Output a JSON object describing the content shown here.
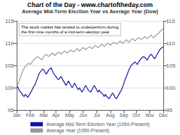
{
  "chart_data": {
    "type": "line",
    "title": "Chart of the Day - www.chartoftheday.com",
    "subtitle": "Average Mid-Term Election Year vs Average Year (Dow)",
    "annotation": "The stock market has tended to underperform during\nthe first nine months of a mid-term election year.",
    "categories": [
      "Jan",
      null,
      null,
      null,
      null,
      null,
      null,
      null,
      null,
      null,
      null,
      "Feb",
      null,
      null,
      null,
      null,
      null,
      null,
      null,
      null,
      null,
      null,
      "Mar",
      null,
      null,
      null,
      null,
      null,
      null,
      null,
      null,
      null,
      "Apr",
      null,
      null,
      null,
      null,
      null,
      null,
      null,
      null,
      null,
      null,
      "May",
      null,
      null,
      null,
      null,
      null,
      null,
      null,
      null,
      null,
      null,
      "Jun",
      null,
      null,
      null,
      null,
      null,
      null,
      null,
      null,
      null,
      null,
      "Jul",
      null,
      null,
      null,
      null,
      null,
      null,
      null,
      null,
      null,
      null,
      "Aug",
      null,
      null,
      null,
      null,
      null,
      null,
      null,
      null,
      null,
      null,
      "Sep",
      null,
      null,
      null,
      null,
      null,
      null,
      null,
      null,
      null,
      "Oct",
      null,
      null,
      null,
      null,
      null,
      null,
      null,
      null,
      null,
      null,
      "Nov",
      null,
      null,
      null,
      null,
      null,
      null,
      null,
      null,
      null,
      null,
      "Dec"
    ],
    "series": [
      {
        "name": "Average Mid-Term Election Year (1950-Present)",
        "color": "#1010aa",
        "values": [
          100.3,
          100.1,
          99.5,
          99.0,
          98.8,
          98.3,
          98.0,
          98.5,
          98.2,
          97.8,
          98.3,
          98.8,
          99.2,
          99.8,
          100.3,
          100.8,
          101.5,
          102.2,
          103.0,
          103.5,
          103.8,
          104.2,
          104.0,
          103.5,
          103.0,
          103.5,
          104.0,
          104.2,
          104.5,
          103.8,
          103.2,
          102.8,
          102.5,
          102.0,
          101.8,
          102.2,
          102.5,
          102.0,
          101.5,
          101.0,
          100.5,
          101.0,
          101.5,
          101.0,
          100.5,
          100.0,
          100.5,
          101.0,
          100.5,
          100.0,
          99.5,
          100.0,
          99.5,
          99.0,
          99.5,
          100.0,
          100.5,
          100.0,
          99.5,
          99.2,
          99.0,
          99.5,
          100.0,
          100.5,
          100.0,
          99.5,
          99.0,
          99.5,
          99.0,
          98.8,
          98.5,
          98.0,
          98.5,
          98.0,
          97.8,
          97.5,
          98.0,
          98.5,
          98.8,
          98.3,
          97.8,
          97.5,
          98.0,
          98.5,
          99.0,
          99.5,
          100.2,
          101.0,
          101.8,
          102.5,
          103.2,
          104.0,
          104.5,
          105.0,
          105.3,
          105.5,
          105.8,
          105.5,
          105.2,
          105.8,
          106.2,
          106.5,
          106.8,
          107.0,
          106.8,
          106.5,
          106.2,
          106.8,
          107.2,
          107.5,
          107.2,
          106.8,
          106.5,
          107.0,
          107.5,
          108.0,
          108.5,
          108.8,
          109.0,
          109.2
        ]
      },
      {
        "name": "Average Year (1950-Present)",
        "color": "#999999",
        "values": [
          100.2,
          100.8,
          101.5,
          102.2,
          103.0,
          103.8,
          104.3,
          104.8,
          105.0,
          105.3,
          105.5,
          105.2,
          105.5,
          106.0,
          106.3,
          106.5,
          106.8,
          107.0,
          106.8,
          106.5,
          106.3,
          106.5,
          107.0,
          107.3,
          107.5,
          107.2,
          107.0,
          107.3,
          107.5,
          107.8,
          107.5,
          107.2,
          107.5,
          107.8,
          108.0,
          107.8,
          107.5,
          107.8,
          108.0,
          108.2,
          108.0,
          107.8,
          108.0,
          108.2,
          108.5,
          108.2,
          108.0,
          108.2,
          108.5,
          108.8,
          108.5,
          108.2,
          108.5,
          108.8,
          109.0,
          108.8,
          108.5,
          108.8,
          109.0,
          109.2,
          109.0,
          108.8,
          109.0,
          109.2,
          109.5,
          109.2,
          109.0,
          109.2,
          109.5,
          109.8,
          109.5,
          109.2,
          109.5,
          109.8,
          110.0,
          109.8,
          109.5,
          109.8,
          110.0,
          110.2,
          110.0,
          109.8,
          110.0,
          110.2,
          110.5,
          110.2,
          110.0,
          110.2,
          110.5,
          110.8,
          110.5,
          110.2,
          110.5,
          110.8,
          111.0,
          110.8,
          110.5,
          110.8,
          111.0,
          111.2,
          111.0,
          110.8,
          111.0,
          111.2,
          111.5,
          111.2,
          111.0,
          111.3,
          111.5,
          111.8,
          111.5,
          111.2,
          111.5,
          111.8,
          112.0,
          112.2,
          112.5,
          112.8,
          113.0,
          113.2
        ]
      }
    ],
    "ylim": [
      95,
      115
    ],
    "yticks": [
      95,
      100,
      105,
      110,
      115
    ],
    "y2lim": [
      95,
      115
    ],
    "y2ticks": [
      95,
      100,
      105,
      110,
      115
    ],
    "grid": true,
    "legend": "bottom"
  }
}
